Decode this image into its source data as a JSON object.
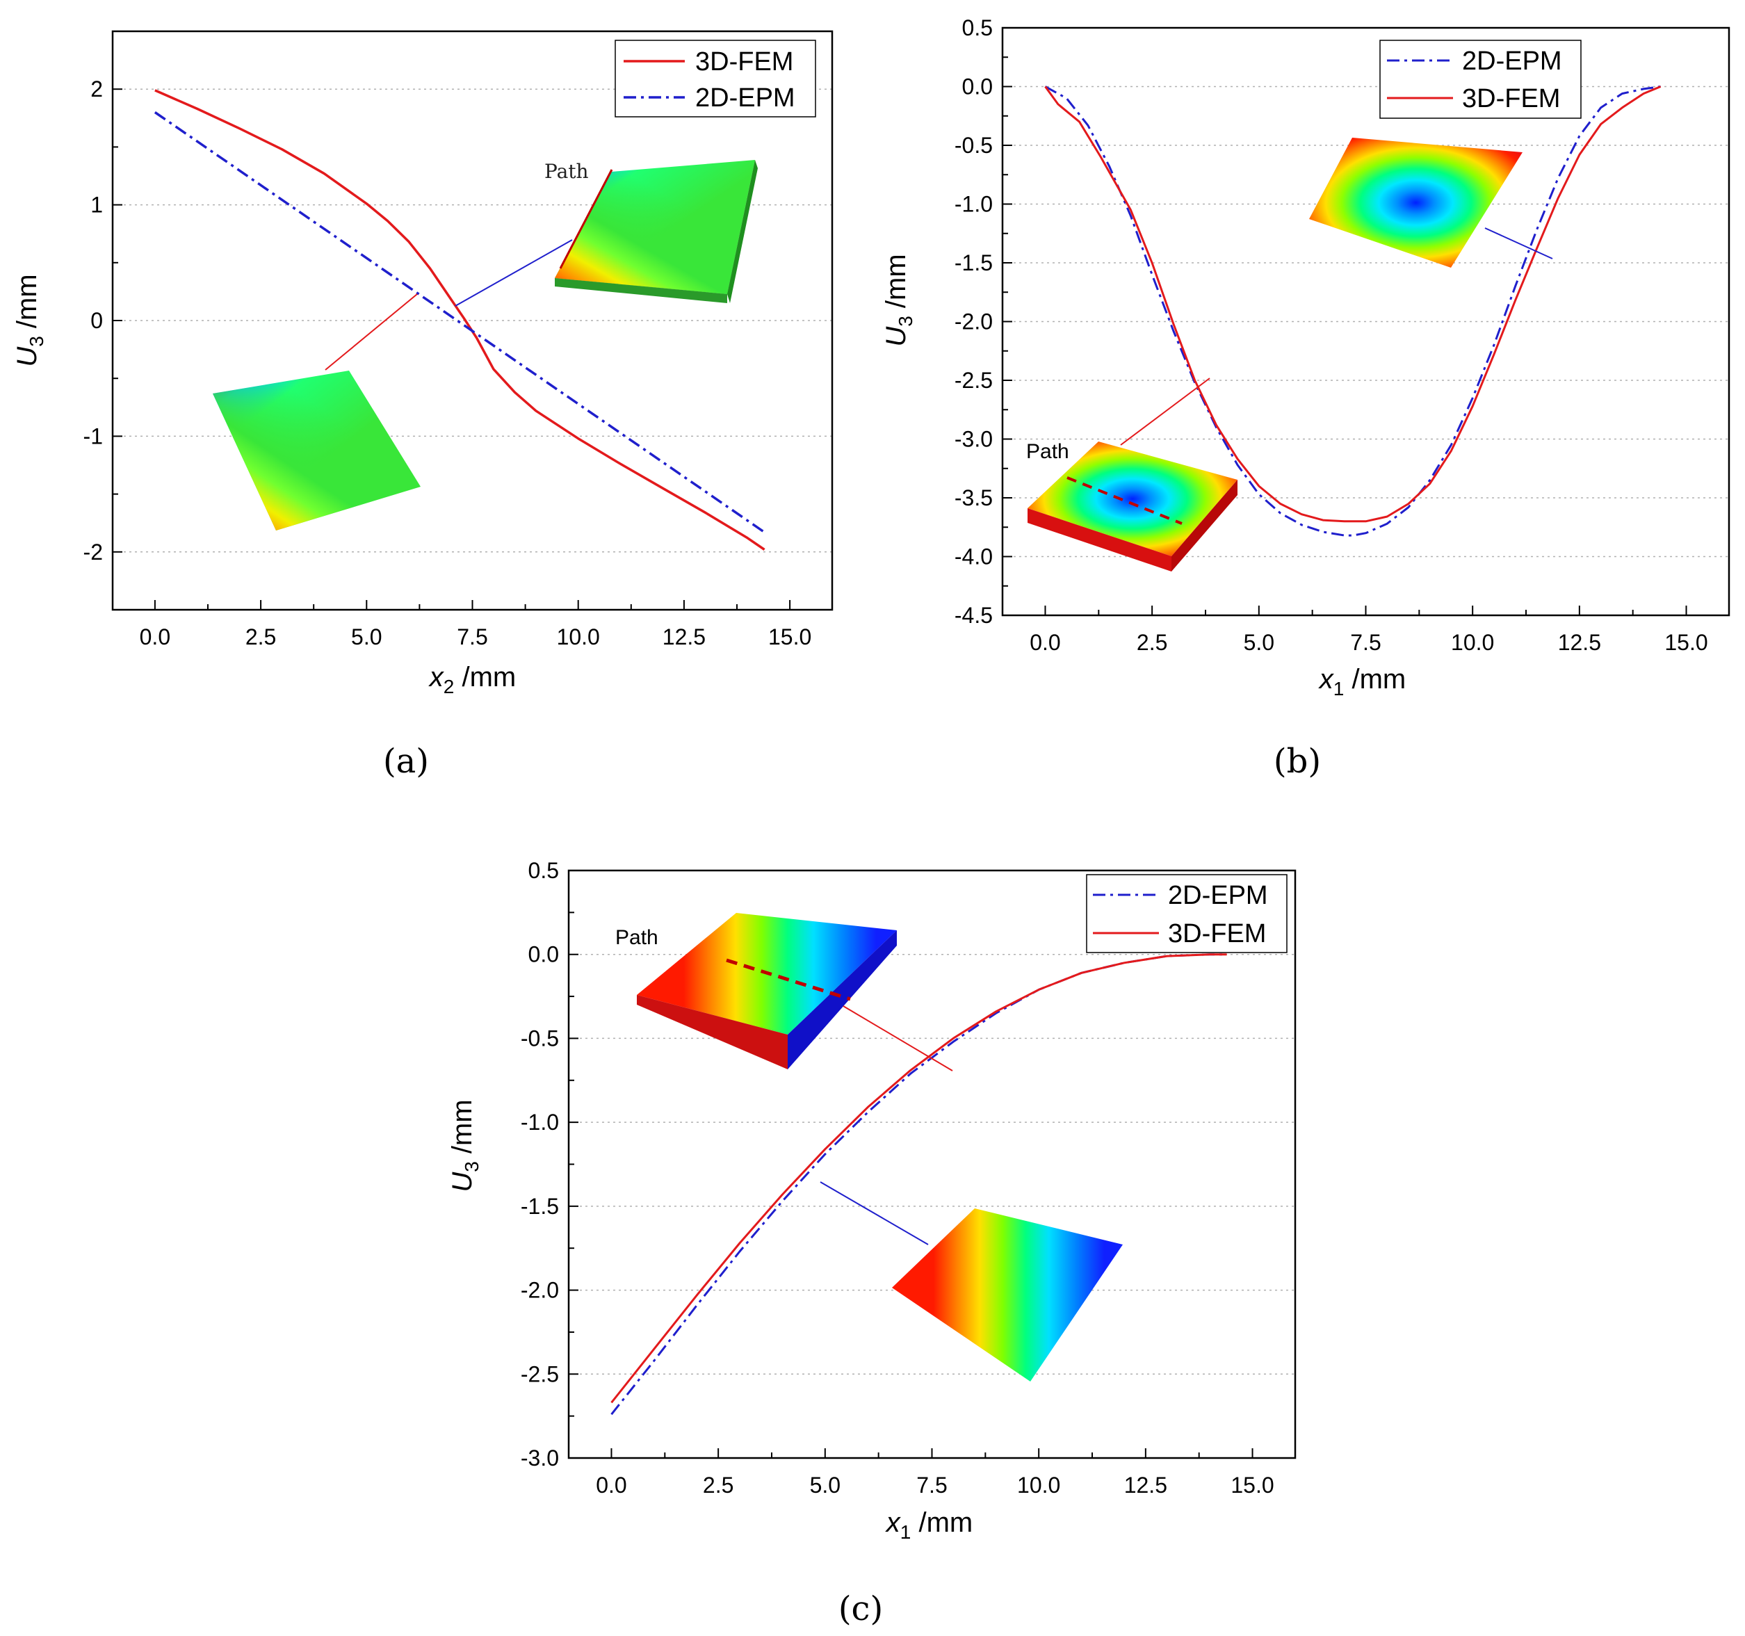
{
  "chart_data": [
    {
      "type": "line",
      "panel_label": "(a)",
      "xlabel_symbol": "x",
      "xlabel_sub": "2",
      "xlabel_unit": " /mm",
      "ylabel_symbol": "U",
      "ylabel_sub": "3",
      "ylabel_unit": " /mm",
      "xlim": [
        -1,
        16
      ],
      "ylim": [
        -2.5,
        2.5
      ],
      "xticks": [
        "0.0",
        "2.5",
        "5.0",
        "7.5",
        "10.0",
        "12.5",
        "15.0"
      ],
      "yticks": [
        "-2",
        "-1",
        "0",
        "1",
        "2"
      ],
      "legend": [
        "3D-FEM",
        "2D-EPM"
      ],
      "inset_text": "Path",
      "series": [
        {
          "name": "3D-FEM",
          "color": "#e31a1c",
          "style": "solid",
          "x": [
            0,
            1.0,
            2.0,
            3.0,
            4.0,
            5.0,
            5.5,
            6.0,
            6.5,
            7.0,
            7.3,
            7.6,
            8.0,
            8.5,
            9.0,
            10.0,
            11.0,
            12.0,
            13.0,
            14.0,
            14.4
          ],
          "y": [
            1.99,
            1.83,
            1.66,
            1.48,
            1.27,
            1.01,
            0.86,
            0.68,
            0.45,
            0.18,
            0.02,
            -0.15,
            -0.42,
            -0.62,
            -0.78,
            -1.02,
            -1.24,
            -1.45,
            -1.66,
            -1.88,
            -1.98
          ]
        },
        {
          "name": "2D-EPM",
          "color": "#1f1fcc",
          "style": "dashdot",
          "x": [
            0,
            14.4
          ],
          "y": [
            1.8,
            -1.83
          ]
        }
      ]
    },
    {
      "type": "line",
      "panel_label": "(b)",
      "xlabel_symbol": "x",
      "xlabel_sub": "1",
      "xlabel_unit": " /mm",
      "ylabel_symbol": "U",
      "ylabel_sub": "3",
      "ylabel_unit": " /mm",
      "xlim": [
        -1,
        16
      ],
      "ylim": [
        -4.5,
        0.5
      ],
      "xticks": [
        "0.0",
        "2.5",
        "5.0",
        "7.5",
        "10.0",
        "12.5",
        "15.0"
      ],
      "yticks": [
        "0.5",
        "0.0",
        "-0.5",
        "-1.0",
        "-1.5",
        "-2.0",
        "-2.5",
        "-3.0",
        "-3.5",
        "-4.0",
        "-4.5"
      ],
      "legend": [
        "2D-EPM",
        "3D-FEM"
      ],
      "inset_text": "Path",
      "series": [
        {
          "name": "2D-EPM",
          "color": "#1f1fcc",
          "style": "dashdot",
          "x": [
            0,
            0.5,
            1.0,
            1.5,
            2.0,
            2.5,
            3.0,
            3.5,
            4.0,
            4.5,
            5.0,
            5.5,
            6.0,
            6.5,
            7.0,
            7.2,
            7.5,
            8.0,
            8.5,
            9.0,
            9.5,
            10.0,
            10.5,
            11.0,
            11.5,
            12.0,
            12.5,
            13.0,
            13.5,
            14.0,
            14.4
          ],
          "y": [
            0,
            -0.1,
            -0.33,
            -0.68,
            -1.1,
            -1.6,
            -2.08,
            -2.52,
            -2.9,
            -3.22,
            -3.47,
            -3.63,
            -3.73,
            -3.79,
            -3.82,
            -3.82,
            -3.8,
            -3.72,
            -3.58,
            -3.35,
            -3.05,
            -2.65,
            -2.2,
            -1.7,
            -1.22,
            -0.78,
            -0.42,
            -0.18,
            -0.06,
            -0.02,
            0
          ]
        },
        {
          "name": "3D-FEM",
          "color": "#e31a1c",
          "style": "solid",
          "x": [
            0,
            0.3,
            0.8,
            1.3,
            2.0,
            2.5,
            3.0,
            3.5,
            4.0,
            4.5,
            5.0,
            5.5,
            6.0,
            6.5,
            7.0,
            7.5,
            8.0,
            8.5,
            9.0,
            9.5,
            10.0,
            10.5,
            11.0,
            11.5,
            12.0,
            12.5,
            13.0,
            13.5,
            14.0,
            14.4
          ],
          "y": [
            0,
            -0.15,
            -0.3,
            -0.6,
            -1.05,
            -1.5,
            -2.02,
            -2.5,
            -2.88,
            -3.17,
            -3.4,
            -3.55,
            -3.64,
            -3.69,
            -3.7,
            -3.7,
            -3.66,
            -3.55,
            -3.38,
            -3.1,
            -2.72,
            -2.28,
            -1.82,
            -1.38,
            -0.95,
            -0.58,
            -0.32,
            -0.18,
            -0.06,
            0
          ]
        }
      ]
    },
    {
      "type": "line",
      "panel_label": "(c)",
      "xlabel_symbol": "x",
      "xlabel_sub": "1",
      "xlabel_unit": " /mm",
      "ylabel_symbol": "U",
      "ylabel_sub": "3",
      "ylabel_unit": " /mm",
      "xlim": [
        -1,
        16
      ],
      "ylim": [
        -3.0,
        0.5
      ],
      "xticks": [
        "0.0",
        "2.5",
        "5.0",
        "7.5",
        "10.0",
        "12.5",
        "15.0"
      ],
      "yticks": [
        "0.5",
        "0.0",
        "-0.5",
        "-1.0",
        "-1.5",
        "-2.0",
        "-2.5",
        "-3.0"
      ],
      "legend": [
        "2D-EPM",
        "3D-FEM"
      ],
      "inset_text": "Path",
      "series": [
        {
          "name": "2D-EPM",
          "color": "#1f1fcc",
          "style": "dashdot",
          "x": [
            0,
            1,
            2,
            3,
            4,
            5,
            6,
            7,
            8,
            9,
            10,
            11,
            12,
            13,
            14,
            14.4
          ],
          "y": [
            -2.74,
            -2.42,
            -2.09,
            -1.77,
            -1.47,
            -1.19,
            -0.94,
            -0.71,
            -0.52,
            -0.35,
            -0.21,
            -0.11,
            -0.05,
            -0.01,
            0,
            0
          ]
        },
        {
          "name": "3D-FEM",
          "color": "#e31a1c",
          "style": "solid",
          "x": [
            0,
            1,
            2,
            3,
            4,
            5,
            6,
            7,
            8,
            9,
            10,
            11,
            12,
            13,
            14,
            14.4
          ],
          "y": [
            -2.67,
            -2.35,
            -2.03,
            -1.72,
            -1.43,
            -1.16,
            -0.91,
            -0.69,
            -0.5,
            -0.34,
            -0.21,
            -0.11,
            -0.05,
            -0.01,
            0,
            0
          ]
        }
      ]
    }
  ]
}
